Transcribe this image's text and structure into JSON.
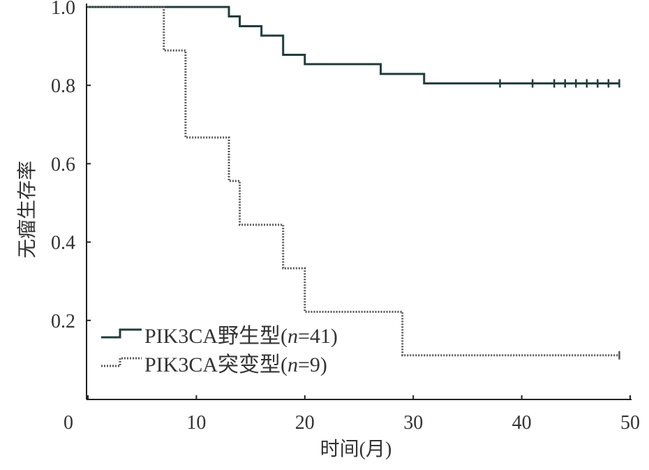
{
  "chart_data": {
    "type": "line",
    "subtype": "kaplan-meier",
    "xlabel": "时间(月)",
    "ylabel": "无瘤生存率",
    "xlim": [
      0,
      50
    ],
    "ylim": [
      0,
      1.0
    ],
    "xticks": [
      "0",
      "10",
      "20",
      "30",
      "40",
      "50"
    ],
    "xtick_values": [
      0,
      10,
      20,
      30,
      40,
      50
    ],
    "yticks": [
      "0.2",
      "0.4",
      "0.6",
      "0.8",
      "1.0"
    ],
    "ytick_values": [
      0.2,
      0.4,
      0.6,
      0.8,
      1.0
    ],
    "legend_position": "bottom-left",
    "series": [
      {
        "name": "PIK3CA野生型(n=41)",
        "legend_prefix": "PIK3CA野生型(",
        "legend_n": "n",
        "legend_suffix": "=41)",
        "style": "solid",
        "color": "#1f3d3d",
        "steps": [
          [
            0,
            1.0
          ],
          [
            13,
            0.976
          ],
          [
            14,
            0.951
          ],
          [
            16,
            0.927
          ],
          [
            18,
            0.878
          ],
          [
            20,
            0.854
          ],
          [
            27,
            0.829
          ],
          [
            31,
            0.805
          ]
        ],
        "end": 49,
        "censored": [
          38,
          41,
          43,
          44,
          45,
          46,
          47,
          48,
          49
        ]
      },
      {
        "name": "PIK3CA突变型(n=9)",
        "legend_prefix": "PIK3CA突变型(",
        "legend_n": "n",
        "legend_suffix": "=9)",
        "style": "dotted",
        "color": "#555555",
        "steps": [
          [
            0,
            1.0
          ],
          [
            7,
            0.889
          ],
          [
            9,
            0.667
          ],
          [
            13,
            0.556
          ],
          [
            14,
            0.444
          ],
          [
            18,
            0.333
          ],
          [
            20,
            0.222
          ],
          [
            29,
            0.111
          ]
        ],
        "end": 49,
        "censored": [
          49
        ]
      }
    ]
  }
}
